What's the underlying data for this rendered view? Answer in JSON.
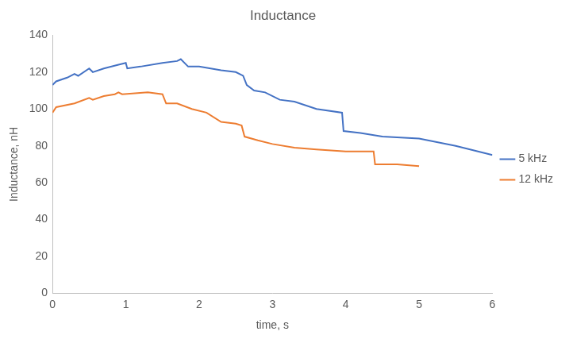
{
  "chart_data": {
    "type": "line",
    "title": "Inductance",
    "x_label": "time, s",
    "y_label": "Inductance, nH",
    "xlim": [
      0,
      6
    ],
    "xticks": [
      0,
      1,
      2,
      3,
      4,
      5,
      6
    ],
    "ylim": [
      0,
      140
    ],
    "yticks": [
      0,
      20,
      40,
      60,
      80,
      100,
      120,
      140
    ],
    "grid": false,
    "legend": "right",
    "series": [
      {
        "name": "5 kHz",
        "color": "#4472c4",
        "x": [
          0,
          0.05,
          0.2,
          0.3,
          0.35,
          0.5,
          0.55,
          0.7,
          0.9,
          1.0,
          1.02,
          1.2,
          1.5,
          1.7,
          1.75,
          1.85,
          2.0,
          2.3,
          2.5,
          2.6,
          2.65,
          2.75,
          2.9,
          3.1,
          3.3,
          3.6,
          3.95,
          3.97,
          4.2,
          4.5,
          5.0,
          5.5,
          6.0
        ],
        "values": [
          113,
          115,
          117,
          119,
          118,
          122,
          120,
          122,
          124,
          125,
          122,
          123,
          125,
          126,
          127,
          123,
          123,
          121,
          120,
          118,
          113,
          110,
          109,
          105,
          104,
          100,
          98,
          88,
          87,
          85,
          84,
          80,
          75
        ]
      },
      {
        "name": "12 kHz",
        "color": "#ed7d31",
        "x": [
          0,
          0.05,
          0.3,
          0.5,
          0.55,
          0.7,
          0.85,
          0.9,
          0.95,
          1.3,
          1.5,
          1.55,
          1.7,
          1.9,
          2.1,
          2.3,
          2.5,
          2.58,
          2.62,
          2.8,
          3.0,
          3.3,
          3.6,
          4.0,
          4.38,
          4.4,
          4.7,
          5.0
        ],
        "values": [
          98,
          101,
          103,
          106,
          105,
          107,
          108,
          109,
          108,
          109,
          108,
          103,
          103,
          100,
          98,
          93,
          92,
          91,
          85,
          83,
          81,
          79,
          78,
          77,
          77,
          70,
          70,
          69
        ]
      }
    ]
  }
}
